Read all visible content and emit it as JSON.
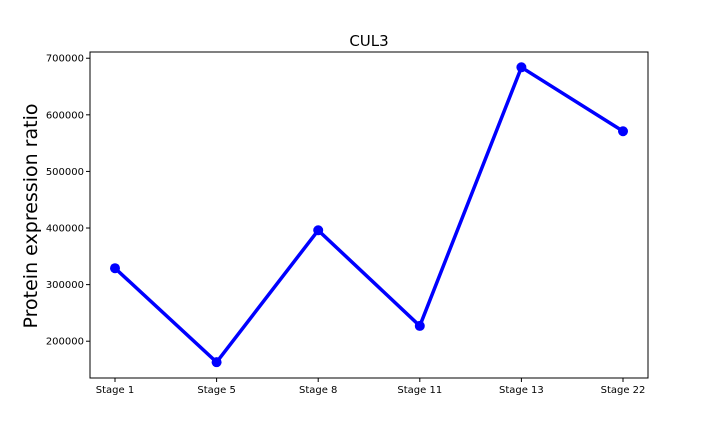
{
  "chart_data": {
    "type": "line",
    "title": "CUL3",
    "xlabel": "",
    "ylabel": "Protein expression ratio",
    "categories": [
      "Stage 1",
      "Stage 5",
      "Stage 8",
      "Stage 11",
      "Stage 13",
      "Stage 22"
    ],
    "series": [
      {
        "values": [
          329000,
          163000,
          396000,
          227000,
          684000,
          571000
        ],
        "color": "#0000ff",
        "marker": "circle"
      }
    ],
    "ylim": [
      135000,
      711000
    ],
    "yticks": [
      200000,
      300000,
      400000,
      500000,
      600000,
      700000
    ],
    "grid": false,
    "legend": "none"
  }
}
